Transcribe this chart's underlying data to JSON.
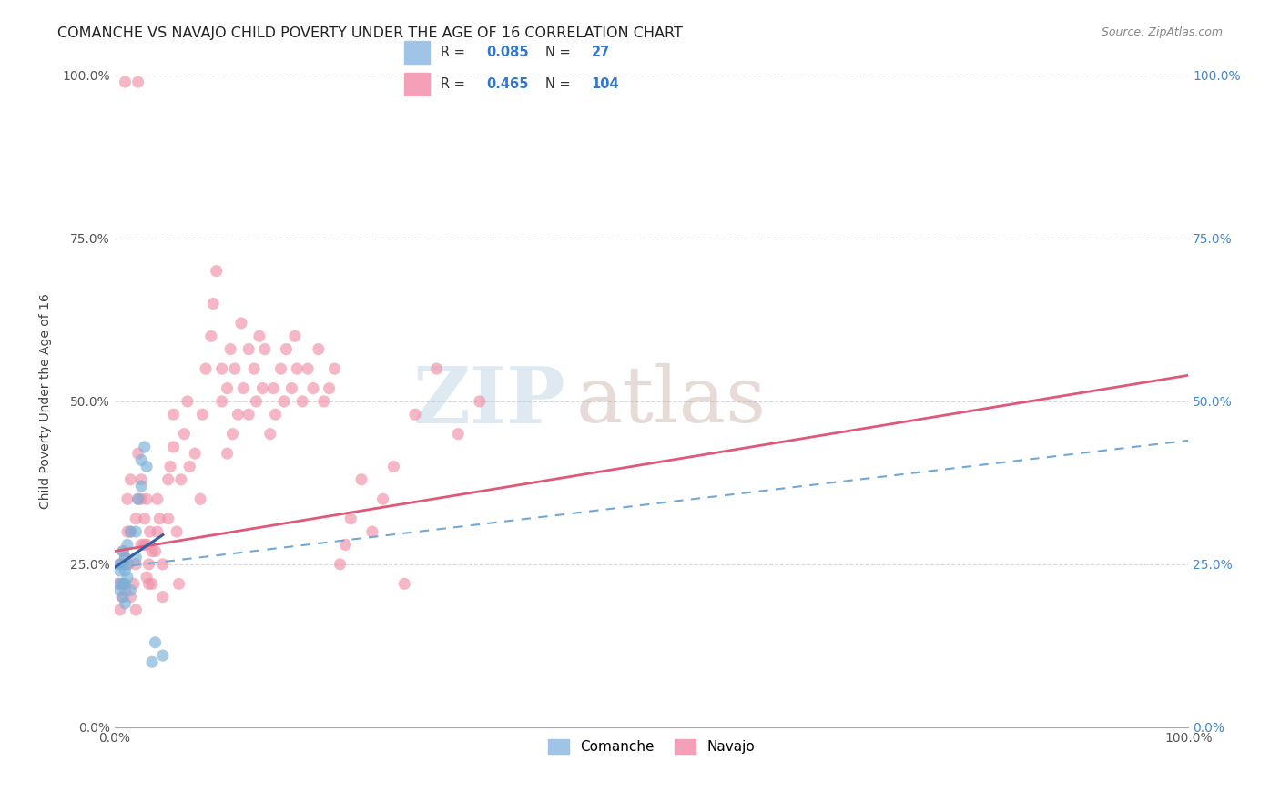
{
  "title": "COMANCHE VS NAVAJO CHILD POVERTY UNDER THE AGE OF 16 CORRELATION CHART",
  "source": "Source: ZipAtlas.com",
  "ylabel": "Child Poverty Under the Age of 16",
  "xlim": [
    0,
    1
  ],
  "ylim": [
    0,
    1
  ],
  "xtick_labels": [
    "0.0%",
    "100.0%"
  ],
  "ytick_labels": [
    "0.0%",
    "25.0%",
    "50.0%",
    "75.0%",
    "100.0%"
  ],
  "ytick_positions": [
    0.0,
    0.25,
    0.5,
    0.75,
    1.0
  ],
  "background_color": "#ffffff",
  "grid_color": "#d8d8d8",
  "watermark_zip": "ZIP",
  "watermark_atlas": "atlas",
  "watermark_color_zip": "#b8cfe0",
  "watermark_color_atlas": "#c8b0a8",
  "comanche_scatter": [
    [
      0.005,
      0.21
    ],
    [
      0.005,
      0.22
    ],
    [
      0.005,
      0.24
    ],
    [
      0.005,
      0.25
    ],
    [
      0.008,
      0.2
    ],
    [
      0.008,
      0.22
    ],
    [
      0.008,
      0.25
    ],
    [
      0.008,
      0.27
    ],
    [
      0.01,
      0.19
    ],
    [
      0.01,
      0.22
    ],
    [
      0.01,
      0.24
    ],
    [
      0.01,
      0.26
    ],
    [
      0.012,
      0.23
    ],
    [
      0.012,
      0.25
    ],
    [
      0.012,
      0.28
    ],
    [
      0.015,
      0.21
    ],
    [
      0.015,
      0.3
    ],
    [
      0.02,
      0.26
    ],
    [
      0.02,
      0.3
    ],
    [
      0.022,
      0.35
    ],
    [
      0.025,
      0.37
    ],
    [
      0.025,
      0.41
    ],
    [
      0.028,
      0.43
    ],
    [
      0.03,
      0.4
    ],
    [
      0.035,
      0.1
    ],
    [
      0.038,
      0.13
    ],
    [
      0.045,
      0.11
    ]
  ],
  "navajo_scatter": [
    [
      0.003,
      0.22
    ],
    [
      0.005,
      0.18
    ],
    [
      0.005,
      0.25
    ],
    [
      0.007,
      0.2
    ],
    [
      0.008,
      0.22
    ],
    [
      0.008,
      0.27
    ],
    [
      0.01,
      0.21
    ],
    [
      0.01,
      0.26
    ],
    [
      0.01,
      0.99
    ],
    [
      0.012,
      0.3
    ],
    [
      0.012,
      0.35
    ],
    [
      0.013,
      0.25
    ],
    [
      0.015,
      0.2
    ],
    [
      0.015,
      0.3
    ],
    [
      0.015,
      0.38
    ],
    [
      0.018,
      0.22
    ],
    [
      0.02,
      0.18
    ],
    [
      0.02,
      0.25
    ],
    [
      0.02,
      0.32
    ],
    [
      0.022,
      0.35
    ],
    [
      0.022,
      0.42
    ],
    [
      0.022,
      0.99
    ],
    [
      0.025,
      0.28
    ],
    [
      0.025,
      0.35
    ],
    [
      0.025,
      0.38
    ],
    [
      0.028,
      0.28
    ],
    [
      0.028,
      0.32
    ],
    [
      0.03,
      0.23
    ],
    [
      0.03,
      0.28
    ],
    [
      0.03,
      0.35
    ],
    [
      0.032,
      0.22
    ],
    [
      0.032,
      0.25
    ],
    [
      0.033,
      0.3
    ],
    [
      0.035,
      0.22
    ],
    [
      0.035,
      0.27
    ],
    [
      0.038,
      0.27
    ],
    [
      0.04,
      0.3
    ],
    [
      0.04,
      0.35
    ],
    [
      0.042,
      0.32
    ],
    [
      0.045,
      0.2
    ],
    [
      0.045,
      0.25
    ],
    [
      0.05,
      0.32
    ],
    [
      0.05,
      0.38
    ],
    [
      0.052,
      0.4
    ],
    [
      0.055,
      0.43
    ],
    [
      0.055,
      0.48
    ],
    [
      0.058,
      0.3
    ],
    [
      0.06,
      0.22
    ],
    [
      0.062,
      0.38
    ],
    [
      0.065,
      0.45
    ],
    [
      0.068,
      0.5
    ],
    [
      0.07,
      0.4
    ],
    [
      0.075,
      0.42
    ],
    [
      0.08,
      0.35
    ],
    [
      0.082,
      0.48
    ],
    [
      0.085,
      0.55
    ],
    [
      0.09,
      0.6
    ],
    [
      0.092,
      0.65
    ],
    [
      0.095,
      0.7
    ],
    [
      0.1,
      0.5
    ],
    [
      0.1,
      0.55
    ],
    [
      0.105,
      0.42
    ],
    [
      0.105,
      0.52
    ],
    [
      0.108,
      0.58
    ],
    [
      0.11,
      0.45
    ],
    [
      0.112,
      0.55
    ],
    [
      0.115,
      0.48
    ],
    [
      0.118,
      0.62
    ],
    [
      0.12,
      0.52
    ],
    [
      0.125,
      0.48
    ],
    [
      0.125,
      0.58
    ],
    [
      0.13,
      0.55
    ],
    [
      0.132,
      0.5
    ],
    [
      0.135,
      0.6
    ],
    [
      0.138,
      0.52
    ],
    [
      0.14,
      0.58
    ],
    [
      0.145,
      0.45
    ],
    [
      0.148,
      0.52
    ],
    [
      0.15,
      0.48
    ],
    [
      0.155,
      0.55
    ],
    [
      0.158,
      0.5
    ],
    [
      0.16,
      0.58
    ],
    [
      0.165,
      0.52
    ],
    [
      0.168,
      0.6
    ],
    [
      0.17,
      0.55
    ],
    [
      0.175,
      0.5
    ],
    [
      0.18,
      0.55
    ],
    [
      0.185,
      0.52
    ],
    [
      0.19,
      0.58
    ],
    [
      0.195,
      0.5
    ],
    [
      0.2,
      0.52
    ],
    [
      0.205,
      0.55
    ],
    [
      0.21,
      0.25
    ],
    [
      0.215,
      0.28
    ],
    [
      0.22,
      0.32
    ],
    [
      0.23,
      0.38
    ],
    [
      0.24,
      0.3
    ],
    [
      0.25,
      0.35
    ],
    [
      0.26,
      0.4
    ],
    [
      0.27,
      0.22
    ],
    [
      0.28,
      0.48
    ],
    [
      0.3,
      0.55
    ],
    [
      0.32,
      0.45
    ],
    [
      0.34,
      0.5
    ]
  ],
  "navajo_line": {
    "x_start": 0.0,
    "x_end": 1.0,
    "y_start": 0.27,
    "y_end": 0.54,
    "color": "#e05878",
    "linewidth": 2.0
  },
  "comanche_line_solid": {
    "x_start": 0.0,
    "x_end": 0.045,
    "y_start": 0.245,
    "y_end": 0.295,
    "color": "#3060a0",
    "linewidth": 2.2
  },
  "comanche_line_dashed": {
    "x_start": 0.0,
    "x_end": 1.0,
    "y_start": 0.245,
    "y_end": 0.44,
    "color": "#70a8d8",
    "linewidth": 1.5
  },
  "comanche_dot_color": "#7ab0d8",
  "comanche_dot_alpha": 0.65,
  "navajo_dot_color": "#f090a8",
  "navajo_dot_alpha": 0.65,
  "dot_size": 90,
  "title_fontsize": 11.5,
  "source_fontsize": 9,
  "axis_label_fontsize": 10,
  "tick_fontsize": 10,
  "legend_R1": "0.085",
  "legend_N1": "27",
  "legend_R2": "0.465",
  "legend_N2": "104",
  "tick_color_left": "#555555",
  "tick_color_right": "#4488cc"
}
